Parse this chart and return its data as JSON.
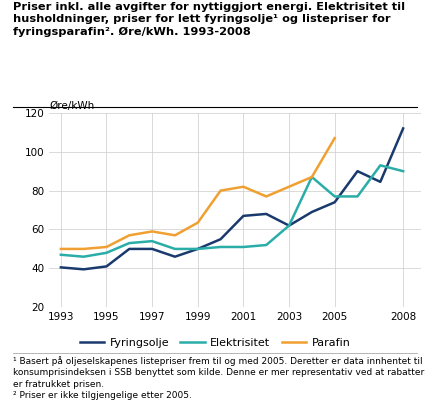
{
  "title_lines": [
    "Priser inkl. alle avgifter for nyttiggjort energi. Elektrisitet til",
    "husholdninger, priser for lett fyringsolje¹ og listepriser for",
    "fyringsparafin². Øre/kWh. 1993-2008"
  ],
  "ylabel": "Øre/kWh",
  "ylim": [
    20,
    120
  ],
  "yticks": [
    20,
    40,
    60,
    80,
    100,
    120
  ],
  "xticks": [
    1993,
    1995,
    1997,
    1999,
    2001,
    2003,
    2005,
    2008
  ],
  "xlim": [
    1992.5,
    2008.8
  ],
  "footnote1": "¹ Basert på oljeselskapenes listepriser frem til og med 2005. Deretter er data innhentet til\nkonsumprisindeksen i SSB benyttet som kilde. Denne er mer representativ ved at rabatter\ner fratrukket prisen.",
  "footnote2": "² Priser er ikke tilgjengelige etter 2005.",
  "fyring_years": [
    1993,
    1994,
    1995,
    1996,
    1997,
    1998,
    1999,
    2000,
    2001,
    2002,
    2003,
    2004,
    2005,
    2006,
    2007,
    2008
  ],
  "fyring_vals": [
    40.5,
    39.5,
    41.0,
    50.0,
    50.0,
    46.0,
    50.0,
    55.0,
    67.0,
    68.0,
    62.0,
    69.0,
    74.0,
    90.0,
    84.5,
    112.0
  ],
  "elek_years": [
    1993,
    1994,
    1995,
    1996,
    1997,
    1998,
    1999,
    2000,
    2001,
    2002,
    2003,
    2004,
    2005,
    2006,
    2007,
    2008
  ],
  "elek_vals": [
    47.0,
    46.0,
    48.0,
    53.0,
    54.0,
    50.0,
    50.0,
    51.0,
    51.0,
    52.0,
    62.0,
    87.0,
    77.0,
    77.0,
    93.0,
    90.0
  ],
  "para_years": [
    1993,
    1994,
    1995,
    1996,
    1997,
    1998,
    1999,
    2000,
    2001,
    2002,
    2003,
    2004,
    2005
  ],
  "para_vals": [
    50.0,
    50.0,
    51.0,
    57.0,
    59.0,
    57.0,
    63.5,
    80.0,
    82.0,
    77.0,
    82.0,
    87.0,
    107.0
  ],
  "color_fyring": "#1a3a6e",
  "color_elek": "#2aada8",
  "color_para": "#f0a030",
  "legend_labels": [
    "Fyringsolje",
    "Elektrisitet",
    "Parafin"
  ],
  "grid_color": "#cccccc",
  "bg_color": "#ffffff",
  "linewidth": 1.8,
  "title_fontsize": 8.2,
  "label_fontsize": 7.5,
  "tick_fontsize": 7.5,
  "legend_fontsize": 8.0,
  "footnote_fontsize": 6.5
}
